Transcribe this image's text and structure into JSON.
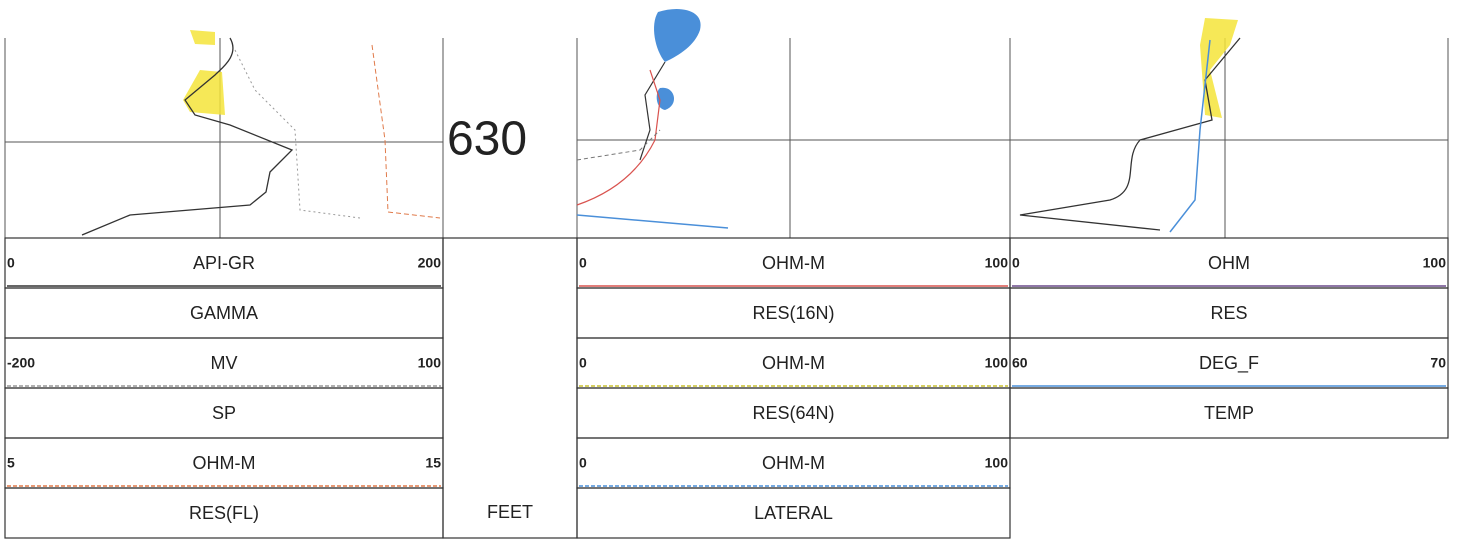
{
  "depth": {
    "label": "630",
    "unit": "FEET"
  },
  "tracks": [
    {
      "curves": [
        {
          "min": 0,
          "unit": "API-GR",
          "max": 200,
          "name": "GAMMA",
          "color": "#333333"
        },
        {
          "min": -200,
          "unit": "MV",
          "max": 100,
          "name": "SP",
          "color": "#999999"
        },
        {
          "min": 5,
          "unit": "OHM-M",
          "max": 15,
          "name": "RES(FL)",
          "color": "#e07a4a"
        }
      ]
    },
    {
      "curves": [
        {
          "min": 0,
          "unit": "OHM-M",
          "max": 100,
          "name": "RES(16N)",
          "color": "#d9534f"
        },
        {
          "min": 0,
          "unit": "OHM-M",
          "max": 100,
          "name": "RES(64N)",
          "color": "#c8c030"
        },
        {
          "min": 0,
          "unit": "OHM-M",
          "max": 100,
          "name": "LATERAL",
          "color": "#4a8fd9"
        }
      ]
    },
    {
      "curves": [
        {
          "min": 0,
          "unit": "OHM",
          "max": 100,
          "name": "RES",
          "color": "#6a4a8a"
        },
        {
          "min": 60,
          "unit": "DEG_F",
          "max": 70,
          "name": "TEMP",
          "color": "#4a8fd9"
        }
      ]
    }
  ]
}
